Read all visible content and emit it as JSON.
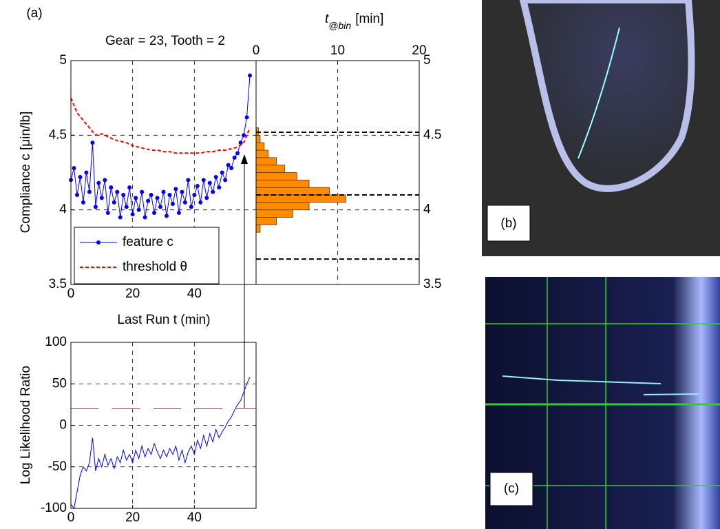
{
  "chart_data": [
    {
      "type": "line",
      "panel_label": "(a)",
      "title": "Gear = 23, Tooth = 2",
      "xlabel": "Last Run t (min)",
      "ylabel": "Compliance c [μin/lb]",
      "xlim": [
        0,
        60
      ],
      "ylim": [
        3.5,
        5
      ],
      "xticks": [
        0,
        20,
        40
      ],
      "yticks": [
        3.5,
        4,
        4.5,
        5
      ],
      "grid": true,
      "legend": "lower left",
      "series": [
        {
          "name": "feature c",
          "color": "#0000ff",
          "marker": true,
          "dashed": false,
          "x": [
            0,
            1,
            2,
            3,
            4,
            5,
            6,
            7,
            8,
            9,
            10,
            11,
            12,
            13,
            14,
            15,
            16,
            17,
            18,
            19,
            20,
            21,
            22,
            23,
            24,
            25,
            26,
            27,
            28,
            29,
            30,
            31,
            32,
            33,
            34,
            35,
            36,
            37,
            38,
            39,
            40,
            41,
            42,
            43,
            44,
            45,
            46,
            47,
            48,
            49,
            50,
            51,
            52,
            53,
            54,
            55,
            56,
            57,
            58
          ],
          "values": [
            4.2,
            4.28,
            4.1,
            4.22,
            4.05,
            4.25,
            4.12,
            4.45,
            4.02,
            4.18,
            4.08,
            4.2,
            3.98,
            4.15,
            4.05,
            4.12,
            3.95,
            4.1,
            4.02,
            4.15,
            3.97,
            4.08,
            4.0,
            4.12,
            3.95,
            4.06,
            4.1,
            3.98,
            4.08,
            4.02,
            4.12,
            3.96,
            4.1,
            4.04,
            4.14,
            3.98,
            4.12,
            4.05,
            4.2,
            4.02,
            4.1,
            4.16,
            4.05,
            4.2,
            4.08,
            4.18,
            4.12,
            4.22,
            4.15,
            4.25,
            4.2,
            4.3,
            4.28,
            4.35,
            4.38,
            4.45,
            4.5,
            4.62,
            4.9
          ]
        },
        {
          "name": "threshold θ",
          "color": "#ff0000",
          "marker": false,
          "dashed": true,
          "x": [
            0,
            1,
            2,
            4,
            6,
            8,
            10,
            12,
            14,
            16,
            18,
            20,
            22,
            24,
            26,
            28,
            30,
            32,
            34,
            36,
            38,
            40,
            42,
            44,
            46,
            48,
            50,
            52,
            54,
            56,
            58
          ],
          "values": [
            4.75,
            4.7,
            4.65,
            4.6,
            4.55,
            4.5,
            4.51,
            4.49,
            4.47,
            4.46,
            4.45,
            4.43,
            4.42,
            4.41,
            4.4,
            4.4,
            4.39,
            4.39,
            4.38,
            4.38,
            4.38,
            4.38,
            4.38,
            4.39,
            4.39,
            4.4,
            4.4,
            4.41,
            4.42,
            4.45,
            4.55
          ]
        }
      ]
    },
    {
      "type": "histogram",
      "orientation": "horizontal",
      "xlabel": [
        "t",
        "@bin",
        "[min]"
      ],
      "xlim": [
        0,
        20
      ],
      "ylim": [
        3.5,
        5
      ],
      "xticks": [
        0,
        10,
        20
      ],
      "yticks": [
        3.5,
        4,
        4.5,
        5
      ],
      "grid": true,
      "color": "#ff8c00",
      "hlines": [
        4.52,
        4.1,
        3.67
      ],
      "bins": [
        3.85,
        3.9,
        3.95,
        4.0,
        4.05,
        4.1,
        4.15,
        4.2,
        4.25,
        4.3,
        4.35,
        4.4,
        4.45,
        4.5,
        4.55
      ],
      "values": [
        0.5,
        2.5,
        4.5,
        6.5,
        11,
        9,
        6.5,
        5,
        3.5,
        2.5,
        1.5,
        1,
        0.5,
        0.3
      ]
    },
    {
      "type": "line",
      "ylabel": "Log Likelihood Ratio",
      "xlim": [
        0,
        60
      ],
      "ylim": [
        -100,
        100
      ],
      "xticks": [
        0,
        20,
        40
      ],
      "yticks": [
        -100,
        -50,
        0,
        50,
        100
      ],
      "grid": true,
      "threshold": 20,
      "threshold_color": "#ff0000",
      "series": [
        {
          "color": "#0000ff",
          "marker": false,
          "dashed": false,
          "x": [
            0,
            1,
            2,
            3,
            4,
            5,
            6,
            7,
            8,
            9,
            10,
            11,
            12,
            13,
            14,
            15,
            16,
            17,
            18,
            19,
            20,
            21,
            22,
            23,
            24,
            25,
            26,
            27,
            28,
            29,
            30,
            31,
            32,
            33,
            34,
            35,
            36,
            37,
            38,
            39,
            40,
            41,
            42,
            43,
            44,
            45,
            46,
            47,
            48,
            49,
            50,
            51,
            52,
            53,
            54,
            55,
            56,
            57,
            58
          ],
          "values": [
            -95,
            -100,
            -80,
            -60,
            -50,
            -55,
            -45,
            -15,
            -55,
            -40,
            -50,
            -35,
            -48,
            -40,
            -52,
            -38,
            -45,
            -30,
            -42,
            -35,
            -45,
            -30,
            -40,
            -25,
            -38,
            -28,
            -35,
            -22,
            -32,
            -40,
            -30,
            -38,
            -28,
            -35,
            -25,
            -42,
            -30,
            -45,
            -32,
            -25,
            -35,
            -18,
            -28,
            -12,
            -25,
            -10,
            -20,
            -5,
            -15,
            -8,
            -2,
            5,
            10,
            18,
            25,
            30,
            40,
            50,
            58
          ]
        }
      ]
    }
  ],
  "images": [
    {
      "label": "(b)"
    },
    {
      "label": "(c)"
    }
  ]
}
